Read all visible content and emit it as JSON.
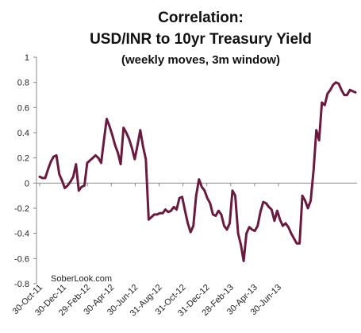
{
  "chart_data": {
    "type": "line",
    "title_line1": "Correlation:",
    "title_line2": "USD/INR to 10yr Treasury Yield",
    "subtitle": "(weekly moves, 3m window)",
    "watermark": "SoberLook.com",
    "ylim": [
      -0.8,
      1
    ],
    "y_ticks": [
      1,
      0.8,
      0.6,
      0.4,
      0.2,
      0,
      -0.2,
      -0.4,
      -0.6,
      -0.8
    ],
    "y_tick_labels": [
      "1",
      "0.8",
      "0.6",
      "0.4",
      "0.2",
      "0",
      "-0.2",
      "-0.4",
      "-0.6",
      "-0.8"
    ],
    "x_tick_labels": [
      "30-Oct-11",
      "30-Dec-11",
      "29-Feb-12",
      "30-Apr-12",
      "30-Jun-12",
      "31-Aug-12",
      "31-Oct-12",
      "31-Dec-12",
      "28-Feb-13",
      "30-Apr-13",
      "30-Jun-13"
    ],
    "line_color": "#6b1a3f",
    "grid": false,
    "series": [
      {
        "values": [
          0.05,
          0.04,
          0.04,
          0.11,
          0.17,
          0.21,
          0.22,
          0.07,
          0.02,
          -0.04,
          -0.02,
          0.01,
          0.05,
          0.15,
          -0.06,
          -0.03,
          -0.02,
          0.16,
          0.18,
          0.2,
          0.22,
          0.2,
          0.16,
          0.34,
          0.51,
          0.45,
          0.38,
          0.3,
          0.24,
          0.15,
          0.44,
          0.4,
          0.35,
          0.28,
          0.19,
          0.3,
          0.42,
          0.29,
          0.19,
          -0.29,
          -0.27,
          -0.25,
          -0.25,
          -0.24,
          -0.24,
          -0.21,
          -0.23,
          -0.22,
          -0.19,
          -0.21,
          -0.12,
          -0.11,
          -0.22,
          -0.32,
          -0.39,
          -0.34,
          -0.1,
          0.03,
          -0.03,
          -0.06,
          -0.12,
          -0.16,
          -0.25,
          -0.26,
          -0.22,
          -0.25,
          -0.34,
          -0.37,
          -0.32,
          -0.06,
          -0.1,
          -0.4,
          -0.49,
          -0.62,
          -0.4,
          -0.35,
          -0.37,
          -0.38,
          -0.34,
          -0.23,
          -0.15,
          -0.16,
          -0.19,
          -0.21,
          -0.3,
          -0.22,
          -0.29,
          -0.34,
          -0.32,
          -0.35,
          -0.4,
          -0.44,
          -0.48,
          -0.48,
          -0.1,
          -0.14,
          -0.2,
          -0.14,
          0.1,
          0.42,
          0.34,
          0.64,
          0.62,
          0.71,
          0.74,
          0.78,
          0.8,
          0.79,
          0.74,
          0.7,
          0.7,
          0.74,
          0.73,
          0.72
        ]
      }
    ]
  }
}
